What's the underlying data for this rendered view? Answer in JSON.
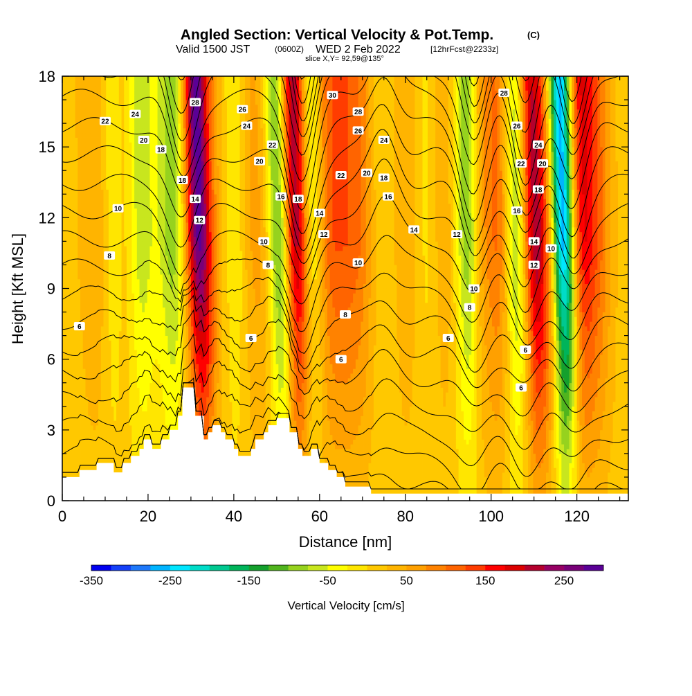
{
  "header": {
    "title": "Angled Section: Vertical Velocity & Pot.Temp.",
    "title_mark": "(C)",
    "valid_a": "Valid 1500 JST",
    "valid_z": "(0600Z)",
    "valid_b": "WED 2 Feb 2022",
    "fcst": "[12hrFcst@2233z]",
    "slice": "slice X,Y= 92,59@135°"
  },
  "chart_data": {
    "type": "heatmap",
    "xlabel": "Distance [nm]",
    "ylabel": "Height [Kft MSL]",
    "xlim": [
      0,
      132
    ],
    "ylim": [
      0,
      18
    ],
    "x_ticks": [
      0,
      20,
      40,
      60,
      80,
      100,
      120
    ],
    "y_ticks": [
      0,
      3,
      6,
      9,
      12,
      15,
      18
    ],
    "colorbar": {
      "label": "Vertical Velocity [cm/s]",
      "range": [
        -350,
        300
      ],
      "tick_labels": [
        "-350",
        "-250",
        "-150",
        "-50",
        "50",
        "150",
        "250"
      ],
      "tick_values": [
        -350,
        -250,
        -150,
        -50,
        50,
        150,
        250
      ],
      "colors": [
        "#0000f0",
        "#1440f8",
        "#1e78fa",
        "#00b4ff",
        "#00e6ff",
        "#00dcc8",
        "#00c890",
        "#00b45a",
        "#14a02d",
        "#50b41e",
        "#96d21e",
        "#c8e61e",
        "#ffff00",
        "#ffe600",
        "#ffc800",
        "#ffb400",
        "#ffa000",
        "#ff8200",
        "#ff6400",
        "#ff3c00",
        "#ff0000",
        "#dc0000",
        "#b4002d",
        "#960064",
        "#780078",
        "#5a0096"
      ]
    },
    "wind_bands": [
      {
        "x": 8,
        "w": 3,
        "a": 40
      },
      {
        "x": 12,
        "w": 1.8,
        "a": -45
      },
      {
        "x": 15,
        "w": 2,
        "a": 35
      },
      {
        "x": 19,
        "w": 3,
        "a": -90
      },
      {
        "x": 22,
        "w": 2,
        "a": 30
      },
      {
        "x": 24,
        "w": 2,
        "a": -40
      },
      {
        "x": 27,
        "w": 2.2,
        "a": -90
      },
      {
        "x": 30.5,
        "w": 2,
        "a": 110
      },
      {
        "x": 33,
        "w": 1.8,
        "a": 190
      },
      {
        "x": 36,
        "w": 2.5,
        "a": 60
      },
      {
        "x": 40,
        "w": 3,
        "a": -50
      },
      {
        "x": 44,
        "w": 2,
        "a": 40
      },
      {
        "x": 48,
        "w": 2.5,
        "a": 60
      },
      {
        "x": 51.5,
        "w": 2.2,
        "a": -200
      },
      {
        "x": 55,
        "w": 2.2,
        "a": 260
      },
      {
        "x": 58.5,
        "w": 2,
        "a": -100
      },
      {
        "x": 62,
        "w": 2.5,
        "a": 90
      },
      {
        "x": 66,
        "w": 2.5,
        "a": 60
      },
      {
        "x": 70,
        "w": 3,
        "a": 80
      },
      {
        "x": 75,
        "w": 3,
        "a": -40
      },
      {
        "x": 80,
        "w": 3,
        "a": 50
      },
      {
        "x": 85,
        "w": 2.5,
        "a": -30
      },
      {
        "x": 89,
        "w": 2,
        "a": 40
      },
      {
        "x": 95,
        "w": 2,
        "a": -120
      },
      {
        "x": 97.5,
        "w": 1.8,
        "a": 60
      },
      {
        "x": 102,
        "w": 2.2,
        "a": 100
      },
      {
        "x": 106.5,
        "w": 2.2,
        "a": -140
      },
      {
        "x": 110.5,
        "w": 2.2,
        "a": 220
      },
      {
        "x": 114,
        "w": 2.2,
        "a": 80
      },
      {
        "x": 117.5,
        "w": 2,
        "a": -330
      },
      {
        "x": 121,
        "w": 2.2,
        "a": 150
      },
      {
        "x": 125,
        "w": 2.5,
        "a": 90
      }
    ],
    "terrain": [
      [
        0,
        1
      ],
      [
        4,
        1
      ],
      [
        4,
        1.3
      ],
      [
        8,
        1.3
      ],
      [
        8,
        1.6
      ],
      [
        12,
        1.6
      ],
      [
        12,
        1.2
      ],
      [
        14,
        1.2
      ],
      [
        14,
        1.6
      ],
      [
        16,
        1.6
      ],
      [
        16,
        1.9
      ],
      [
        18,
        1.9
      ],
      [
        18,
        2.2
      ],
      [
        19,
        2.2
      ],
      [
        19,
        2.6
      ],
      [
        21,
        2.6
      ],
      [
        21,
        2.2
      ],
      [
        23,
        2.2
      ],
      [
        23,
        2.6
      ],
      [
        25,
        2.6
      ],
      [
        25,
        3
      ],
      [
        27,
        3
      ],
      [
        27,
        3.6
      ],
      [
        28,
        3.6
      ],
      [
        28,
        4.8
      ],
      [
        31,
        4.8
      ],
      [
        31,
        3.6
      ],
      [
        33,
        3.6
      ],
      [
        33,
        2.6
      ],
      [
        34,
        2.6
      ],
      [
        34,
        2.9
      ],
      [
        35,
        2.9
      ],
      [
        35,
        3.2
      ],
      [
        37,
        3.2
      ],
      [
        37,
        2.9
      ],
      [
        38,
        2.9
      ],
      [
        38,
        2.6
      ],
      [
        40,
        2.6
      ],
      [
        40,
        2.2
      ],
      [
        41,
        2.2
      ],
      [
        41,
        1.9
      ],
      [
        44,
        1.9
      ],
      [
        44,
        2.2
      ],
      [
        45,
        2.2
      ],
      [
        45,
        2.6
      ],
      [
        47,
        2.6
      ],
      [
        47,
        2.9
      ],
      [
        48,
        2.9
      ],
      [
        48,
        3.2
      ],
      [
        50,
        3.2
      ],
      [
        50,
        3.5
      ],
      [
        53,
        3.5
      ],
      [
        53,
        2.9
      ],
      [
        55,
        2.9
      ],
      [
        55,
        2.2
      ],
      [
        56,
        2.2
      ],
      [
        56,
        1.9
      ],
      [
        58,
        1.9
      ],
      [
        58,
        2.2
      ],
      [
        60,
        2.2
      ],
      [
        60,
        1.6
      ],
      [
        62,
        1.6
      ],
      [
        62,
        1.3
      ],
      [
        64,
        1.3
      ],
      [
        64,
        1
      ],
      [
        66,
        1
      ],
      [
        66,
        0.6
      ],
      [
        72,
        0.6
      ],
      [
        72,
        0.3
      ],
      [
        132,
        0.3
      ]
    ],
    "theta_levels": [
      6,
      8,
      10,
      12,
      14,
      16,
      18,
      20,
      22,
      24,
      26,
      28,
      30
    ],
    "theta_labels": [
      {
        "x": 4,
        "y": 7.4,
        "v": "6"
      },
      {
        "x": 44,
        "y": 6.9,
        "v": "6"
      },
      {
        "x": 65,
        "y": 6,
        "v": "6"
      },
      {
        "x": 90,
        "y": 6.9,
        "v": "6"
      },
      {
        "x": 108,
        "y": 6.4,
        "v": "6"
      },
      {
        "x": 107,
        "y": 4.8,
        "v": "6"
      },
      {
        "x": 11,
        "y": 10.4,
        "v": "8"
      },
      {
        "x": 48,
        "y": 10,
        "v": "8"
      },
      {
        "x": 66,
        "y": 7.9,
        "v": "8"
      },
      {
        "x": 95,
        "y": 8.2,
        "v": "8"
      },
      {
        "x": 13,
        "y": 12.4,
        "v": "10"
      },
      {
        "x": 47,
        "y": 11,
        "v": "10"
      },
      {
        "x": 69,
        "y": 10.1,
        "v": "10"
      },
      {
        "x": 96,
        "y": 9,
        "v": "10"
      },
      {
        "x": 114,
        "y": 10.7,
        "v": "10"
      },
      {
        "x": 32,
        "y": 11.9,
        "v": "12"
      },
      {
        "x": 61,
        "y": 11.3,
        "v": "12"
      },
      {
        "x": 92,
        "y": 11.3,
        "v": "12"
      },
      {
        "x": 110,
        "y": 10,
        "v": "12"
      },
      {
        "x": 31,
        "y": 12.8,
        "v": "14"
      },
      {
        "x": 60,
        "y": 12.2,
        "v": "14"
      },
      {
        "x": 82,
        "y": 11.5,
        "v": "14"
      },
      {
        "x": 110,
        "y": 11,
        "v": "14"
      },
      {
        "x": 51,
        "y": 12.9,
        "v": "16"
      },
      {
        "x": 76,
        "y": 12.9,
        "v": "16"
      },
      {
        "x": 106,
        "y": 12.3,
        "v": "16"
      },
      {
        "x": 28,
        "y": 13.6,
        "v": "18"
      },
      {
        "x": 55,
        "y": 12.8,
        "v": "18"
      },
      {
        "x": 75,
        "y": 13.7,
        "v": "18"
      },
      {
        "x": 111,
        "y": 13.2,
        "v": "18"
      },
      {
        "x": 23,
        "y": 14.9,
        "v": "18"
      },
      {
        "x": 19,
        "y": 15.3,
        "v": "20"
      },
      {
        "x": 46,
        "y": 14.4,
        "v": "20"
      },
      {
        "x": 71,
        "y": 13.9,
        "v": "20"
      },
      {
        "x": 112,
        "y": 14.3,
        "v": "20"
      },
      {
        "x": 10,
        "y": 16.1,
        "v": "22"
      },
      {
        "x": 49,
        "y": 15.1,
        "v": "22"
      },
      {
        "x": 65,
        "y": 13.8,
        "v": "22"
      },
      {
        "x": 107,
        "y": 14.3,
        "v": "22"
      },
      {
        "x": 17,
        "y": 16.4,
        "v": "24"
      },
      {
        "x": 43,
        "y": 15.9,
        "v": "24"
      },
      {
        "x": 75,
        "y": 15.3,
        "v": "24"
      },
      {
        "x": 111,
        "y": 15.1,
        "v": "24"
      },
      {
        "x": 42,
        "y": 16.6,
        "v": "26"
      },
      {
        "x": 69,
        "y": 15.7,
        "v": "26"
      },
      {
        "x": 106,
        "y": 15.9,
        "v": "26"
      },
      {
        "x": 31,
        "y": 16.9,
        "v": "28"
      },
      {
        "x": 69,
        "y": 16.5,
        "v": "28"
      },
      {
        "x": 103,
        "y": 17.3,
        "v": "28"
      },
      {
        "x": 63,
        "y": 17.2,
        "v": "30"
      }
    ]
  }
}
